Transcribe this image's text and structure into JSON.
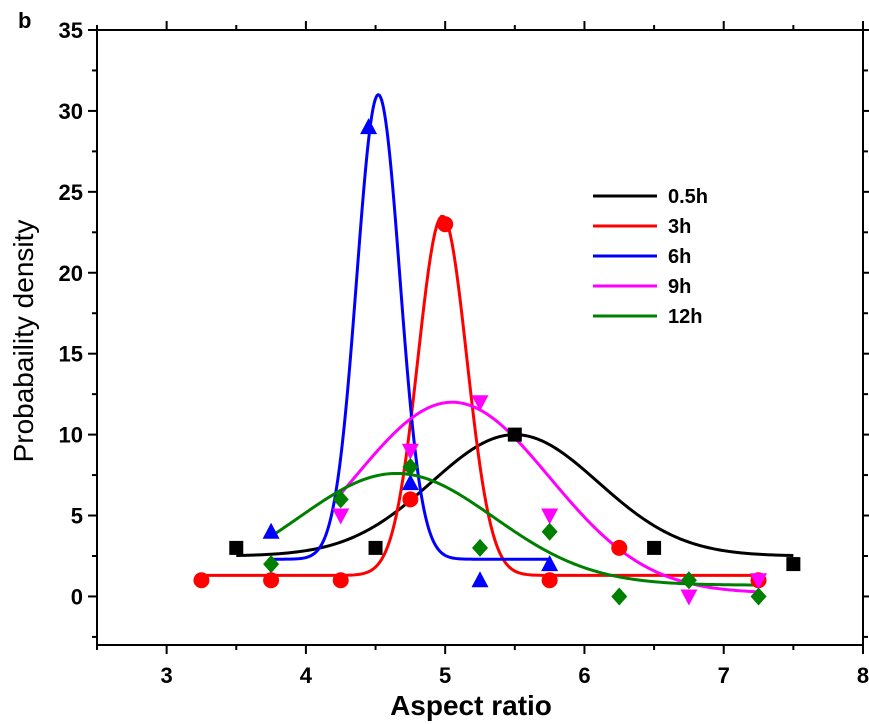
{
  "chart_data": {
    "type": "scatter",
    "panel_label": "b",
    "xlabel": "Aspect ratio",
    "ylabel": "Probabaility density",
    "xlim": [
      2.5,
      8
    ],
    "ylim": [
      -3,
      35
    ],
    "x_ticks": [
      3,
      4,
      5,
      6,
      7,
      8
    ],
    "y_ticks": [
      0,
      5,
      10,
      15,
      20,
      25,
      30,
      35
    ],
    "legend_position": "upper-right",
    "series": [
      {
        "name": "0.5h",
        "color": "#000000",
        "marker": "square",
        "points": [
          [
            3.5,
            3
          ],
          [
            4.5,
            3
          ],
          [
            5.5,
            10
          ],
          [
            6.5,
            3
          ],
          [
            7.5,
            2
          ]
        ],
        "fit": {
          "y0": 2.5,
          "A": 7.5,
          "xc": 5.5,
          "w": 0.6,
          "xmin": 3.5,
          "xmax": 7.5
        }
      },
      {
        "name": "3h",
        "color": "#ff0000",
        "marker": "circle",
        "points": [
          [
            3.25,
            1
          ],
          [
            3.75,
            1
          ],
          [
            4.25,
            1
          ],
          [
            4.75,
            6
          ],
          [
            5.0,
            23
          ],
          [
            5.75,
            1
          ],
          [
            6.25,
            3
          ],
          [
            7.25,
            1
          ]
        ],
        "fit": {
          "y0": 1.3,
          "A": 22.2,
          "xc": 4.98,
          "w": 0.175,
          "xmin": 3.25,
          "xmax": 7.25
        }
      },
      {
        "name": "6h",
        "color": "#0000ff",
        "marker": "triangle-up",
        "points": [
          [
            3.75,
            4
          ],
          [
            4.45,
            29
          ],
          [
            4.75,
            7
          ],
          [
            5.25,
            1
          ],
          [
            5.75,
            2
          ]
        ],
        "fit": {
          "y0": 2.3,
          "A": 28.7,
          "xc": 4.52,
          "w": 0.155,
          "xmin": 3.75,
          "xmax": 5.75
        }
      },
      {
        "name": "9h",
        "color": "#ff00ff",
        "marker": "triangle-down",
        "points": [
          [
            4.25,
            5
          ],
          [
            4.75,
            9
          ],
          [
            5.25,
            12
          ],
          [
            5.75,
            5
          ],
          [
            6.75,
            0
          ],
          [
            7.25,
            1
          ]
        ],
        "fit": {
          "y0": 0.2,
          "A": 11.8,
          "xc": 5.05,
          "w": 0.7,
          "xmin": 4.25,
          "xmax": 7.25
        }
      },
      {
        "name": "12h",
        "color": "#008000",
        "marker": "diamond",
        "points": [
          [
            3.75,
            2
          ],
          [
            4.25,
            6
          ],
          [
            4.75,
            8
          ],
          [
            5.25,
            3
          ],
          [
            5.75,
            4
          ],
          [
            6.25,
            0
          ],
          [
            6.75,
            1
          ],
          [
            7.25,
            0
          ]
        ],
        "fit": {
          "y0": 0.7,
          "A": 6.9,
          "xc": 4.65,
          "w": 0.7,
          "xmin": 3.75,
          "xmax": 7.25
        }
      }
    ]
  }
}
